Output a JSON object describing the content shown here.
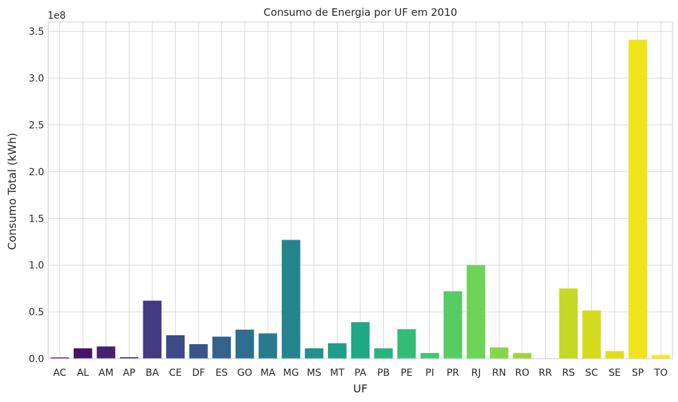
{
  "chart_data": {
    "type": "bar",
    "title": "Consumo de Energia por UF em 2010",
    "xlabel": "UF",
    "ylabel": "Consumo Total (kWh)",
    "offset_label": "1e8",
    "ylim": [
      0,
      3.6
    ],
    "grid": true,
    "yticks": [
      {
        "value": 0.0,
        "label": "0.0"
      },
      {
        "value": 0.5,
        "label": "0.5"
      },
      {
        "value": 1.0,
        "label": "1.0"
      },
      {
        "value": 1.5,
        "label": "1.5"
      },
      {
        "value": 2.0,
        "label": "2.0"
      },
      {
        "value": 2.5,
        "label": "2.5"
      },
      {
        "value": 3.0,
        "label": "3.0"
      },
      {
        "value": 3.5,
        "label": "3.5"
      }
    ],
    "categories": [
      "AC",
      "AL",
      "AM",
      "AP",
      "BA",
      "CE",
      "DF",
      "ES",
      "GO",
      "MA",
      "MG",
      "MS",
      "MT",
      "PA",
      "PB",
      "PE",
      "PI",
      "PR",
      "RJ",
      "RN",
      "RO",
      "RR",
      "RS",
      "SC",
      "SE",
      "SP",
      "TO"
    ],
    "values": [
      0.012,
      0.11,
      0.13,
      0.015,
      0.62,
      0.25,
      0.155,
      0.235,
      0.31,
      0.27,
      1.27,
      0.11,
      0.165,
      0.39,
      0.11,
      0.315,
      0.06,
      0.72,
      1.0,
      0.12,
      0.06,
      0.004,
      0.75,
      0.515,
      0.08,
      3.41,
      0.04
    ],
    "colors": [
      "#450457",
      "#471366",
      "#472070",
      "#452C7B",
      "#433A83",
      "#3D4A89",
      "#38558C",
      "#33628D",
      "#2E6E8E",
      "#297A8E",
      "#25858E",
      "#21918C",
      "#1F9D89",
      "#20A886",
      "#28B27E",
      "#34BC76",
      "#43C66E",
      "#56CC63",
      "#6DD458",
      "#86D649",
      "#9CD73D",
      "#B3DA2E",
      "#C4D926",
      "#D5DC1D",
      "#E3DE1A",
      "#F1E31C",
      "#FDE725"
    ]
  }
}
